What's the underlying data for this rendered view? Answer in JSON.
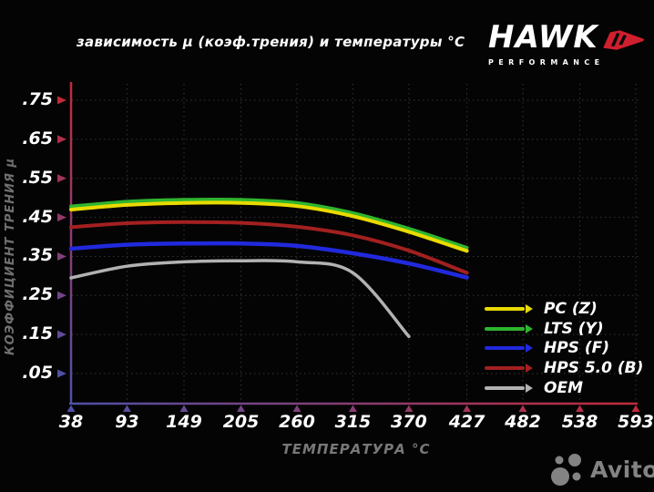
{
  "logo": {
    "brand": "HAWK",
    "subtitle": "PERFORMANCE"
  },
  "watermark": {
    "text": "Avito"
  },
  "chart_data": {
    "type": "line",
    "title": "зависимость μ (коэф.трения) и температуры °C",
    "xlabel": "ТЕМПЕРАТУРА °C",
    "ylabel": "КОЭФФИЦИЕНТ ТРЕНИЯ μ",
    "x_ticks": [
      38,
      93,
      149,
      205,
      260,
      315,
      370,
      427,
      482,
      538,
      593
    ],
    "y_ticks": [
      0.75,
      0.65,
      0.55,
      0.45,
      0.35,
      0.25,
      0.15,
      0.05
    ],
    "y_tick_labels": [
      ".75",
      ".65",
      ".55",
      ".45",
      ".35",
      ".25",
      ".15",
      ".05"
    ],
    "xlim": [
      38,
      593
    ],
    "ylim": [
      0,
      0.8
    ],
    "grid": true,
    "legend_position": "inside-right-bottom",
    "series": [
      {
        "name": "PC (Z)",
        "color": "#e9da00",
        "x": [
          38,
          93,
          149,
          205,
          260,
          315,
          370,
          427
        ],
        "values": [
          0.47,
          0.482,
          0.487,
          0.487,
          0.479,
          0.453,
          0.413,
          0.364
        ]
      },
      {
        "name": "LTS (Y)",
        "color": "#2fb52f",
        "x": [
          38,
          93,
          149,
          205,
          260,
          315,
          370,
          427
        ],
        "values": [
          0.478,
          0.49,
          0.495,
          0.495,
          0.487,
          0.461,
          0.421,
          0.372
        ]
      },
      {
        "name": "HPS (F)",
        "color": "#2129dd",
        "x": [
          38,
          93,
          149,
          205,
          260,
          315,
          370,
          427
        ],
        "values": [
          0.37,
          0.38,
          0.383,
          0.383,
          0.377,
          0.358,
          0.332,
          0.296
        ]
      },
      {
        "name": "HPS 5.0 (B)",
        "color": "#a32020",
        "x": [
          38,
          93,
          149,
          205,
          260,
          315,
          370,
          427
        ],
        "values": [
          0.425,
          0.435,
          0.438,
          0.436,
          0.426,
          0.404,
          0.365,
          0.308
        ]
      },
      {
        "name": "OEM",
        "color": "#b2b2b2",
        "x": [
          38,
          93,
          149,
          205,
          260,
          315,
          370
        ],
        "values": [
          0.295,
          0.325,
          0.336,
          0.339,
          0.336,
          0.308,
          0.145
        ]
      }
    ],
    "style": {
      "grid_color": "#343434",
      "y_axis_top_color": "#c22a3a",
      "y_axis_bottom_color": "#5050a8",
      "x_axis_left_color": "#5050a8",
      "x_axis_right_color": "#c22a3a",
      "line_widths": [
        4,
        4,
        4.5,
        4,
        3.5
      ],
      "draw_order": [
        4,
        3,
        2,
        1,
        0
      ]
    }
  }
}
